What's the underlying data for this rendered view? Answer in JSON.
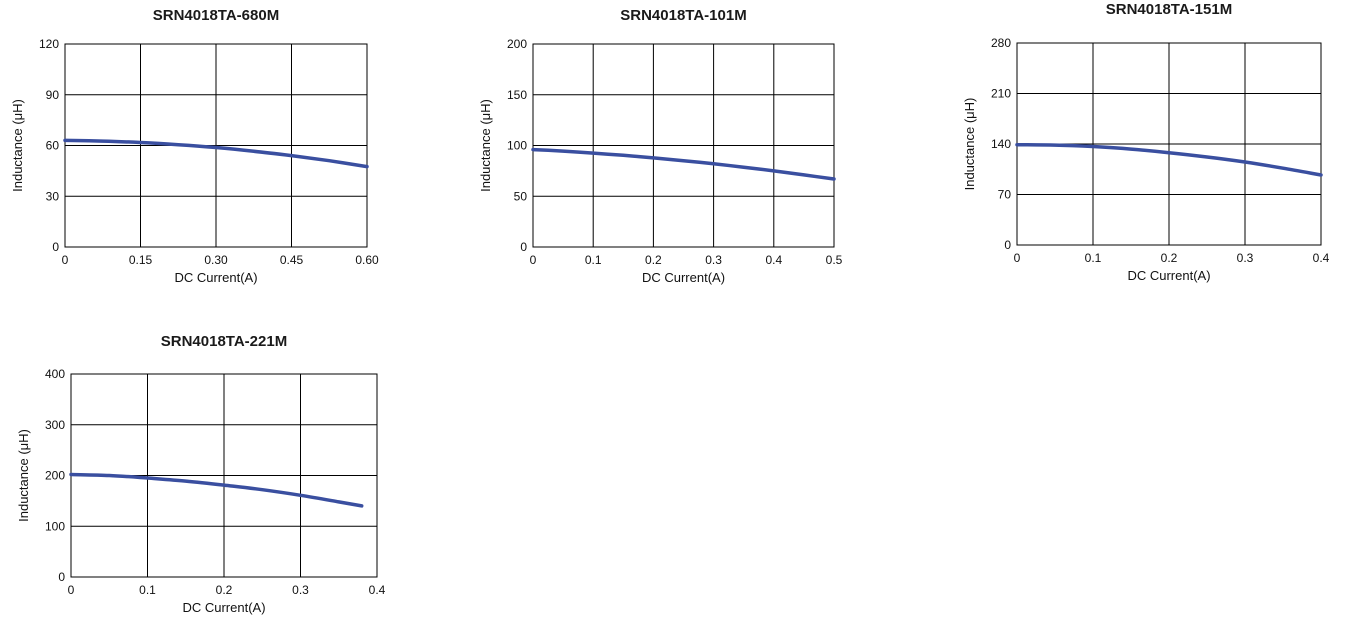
{
  "chart_data": [
    {
      "type": "line",
      "title": "SRN4018TA-680M",
      "xlabel": "DC Current(A)",
      "ylabel": "Inductance (μH)",
      "xlim": [
        0,
        0.6
      ],
      "ylim": [
        0,
        120
      ],
      "xticks": [
        0,
        0.15,
        0.3,
        0.45,
        0.6
      ],
      "xtick_labels": [
        "0",
        "0.15",
        "0.30",
        "0.45",
        "0.60"
      ],
      "yticks": [
        0,
        30,
        60,
        90,
        120
      ],
      "ytick_labels": [
        "0",
        "30",
        "60",
        "90",
        "120"
      ],
      "grid": true,
      "series": [
        {
          "x": [
            0,
            0.075,
            0.15,
            0.225,
            0.3,
            0.375,
            0.45,
            0.525,
            0.6
          ],
          "y": [
            63,
            62.6,
            61.8,
            60.5,
            58.8,
            56.6,
            54,
            51,
            47.5
          ]
        }
      ]
    },
    {
      "type": "line",
      "title": "SRN4018TA-101M",
      "xlabel": "DC Current(A)",
      "ylabel": "Inductance (μH)",
      "xlim": [
        0,
        0.5
      ],
      "ylim": [
        0,
        200
      ],
      "xticks": [
        0,
        0.1,
        0.2,
        0.3,
        0.4,
        0.5
      ],
      "xtick_labels": [
        "0",
        "0.1",
        "0.2",
        "0.3",
        "0.4",
        "0.5"
      ],
      "yticks": [
        0,
        50,
        100,
        150,
        200
      ],
      "ytick_labels": [
        "0",
        "50",
        "100",
        "150",
        "200"
      ],
      "grid": true,
      "series": [
        {
          "x": [
            0,
            0.05,
            0.1,
            0.15,
            0.2,
            0.25,
            0.3,
            0.35,
            0.4,
            0.45,
            0.5
          ],
          "y": [
            96,
            94.5,
            92.5,
            90.3,
            87.8,
            85,
            82,
            78.6,
            75,
            71,
            67
          ]
        }
      ]
    },
    {
      "type": "line",
      "title": "SRN4018TA-151M",
      "xlabel": "DC Current(A)",
      "ylabel": "Inductance (μH)",
      "xlim": [
        0,
        0.4
      ],
      "ylim": [
        0,
        280
      ],
      "xticks": [
        0,
        0.1,
        0.2,
        0.3,
        0.4
      ],
      "xtick_labels": [
        "0",
        "0.1",
        "0.2",
        "0.3",
        "0.4"
      ],
      "yticks": [
        0,
        70,
        140,
        210,
        280
      ],
      "ytick_labels": [
        "0",
        "70",
        "140",
        "210",
        "280"
      ],
      "grid": true,
      "series": [
        {
          "x": [
            0,
            0.05,
            0.1,
            0.15,
            0.2,
            0.25,
            0.3,
            0.35,
            0.4
          ],
          "y": [
            139,
            138.5,
            136.5,
            133,
            128,
            122,
            115,
            106.5,
            97
          ]
        }
      ]
    },
    {
      "type": "line",
      "title": "SRN4018TA-221M",
      "xlabel": "DC Current(A)",
      "ylabel": "Inductance (μH)",
      "xlim": [
        0,
        0.4
      ],
      "ylim": [
        0,
        400
      ],
      "xticks": [
        0,
        0.1,
        0.2,
        0.3,
        0.4
      ],
      "xtick_labels": [
        "0",
        "0.1",
        "0.2",
        "0.3",
        "0.4"
      ],
      "yticks": [
        0,
        100,
        200,
        300,
        400
      ],
      "ytick_labels": [
        "0",
        "100",
        "200",
        "300",
        "400"
      ],
      "grid": true,
      "series": [
        {
          "x": [
            0,
            0.05,
            0.1,
            0.15,
            0.2,
            0.25,
            0.3,
            0.35,
            0.38
          ],
          "y": [
            202,
            200,
            195,
            189,
            181,
            172,
            161,
            148,
            140
          ]
        }
      ]
    }
  ],
  "colors": {
    "curve": "#3a4fa0",
    "grid": "#000000",
    "text": "#111111"
  }
}
